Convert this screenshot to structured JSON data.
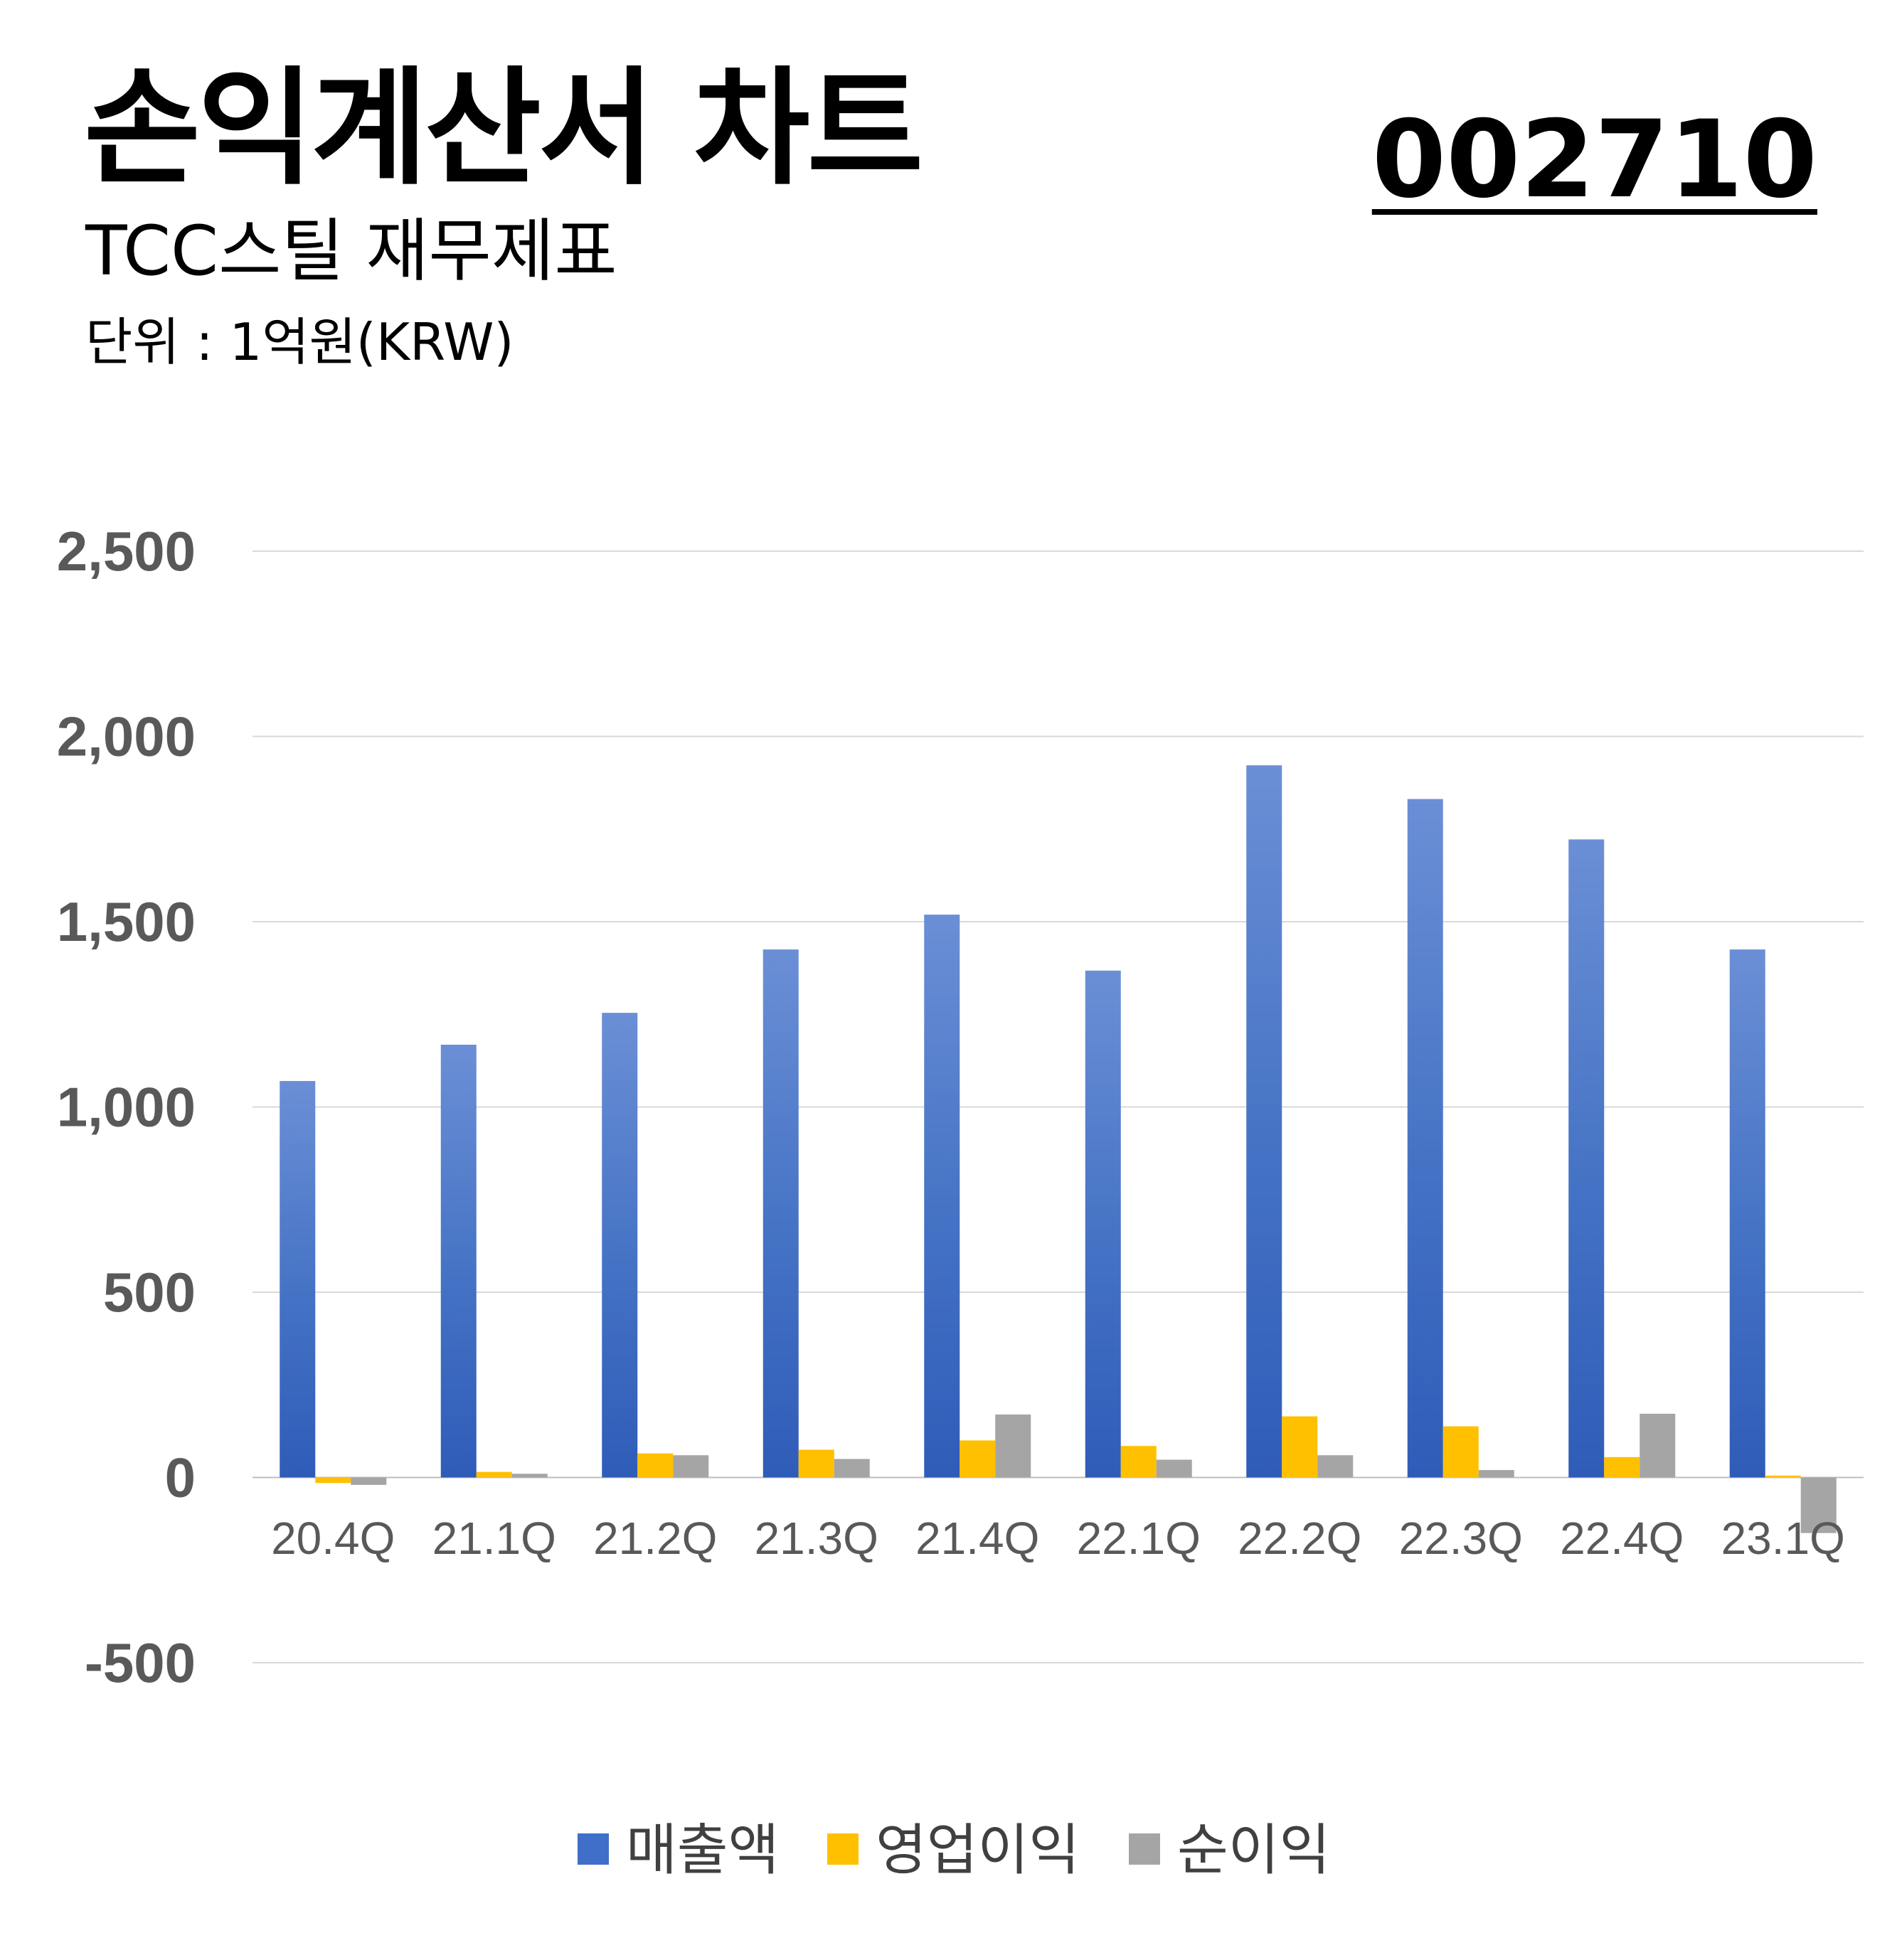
{
  "header": {
    "title": "손익계산서 차트",
    "subtitle": "TCC스틸 재무제표",
    "unit": "단위 : 1억원(KRW)",
    "code": "002710"
  },
  "chart_data": {
    "type": "bar",
    "categories": [
      "20.4Q",
      "21.1Q",
      "21.2Q",
      "21.3Q",
      "21.4Q",
      "22.1Q",
      "22.2Q",
      "22.3Q",
      "22.4Q",
      "23.1Q"
    ],
    "series": [
      {
        "name": "매출액",
        "color": "#4472C4",
        "values": [
          1070,
          1168,
          1254,
          1425,
          1519,
          1368,
          1922,
          1831,
          1722,
          1425
        ]
      },
      {
        "name": "영업이익",
        "color": "#FFC000",
        "values": [
          -15,
          15,
          65,
          75,
          100,
          85,
          165,
          138,
          55,
          5
        ]
      },
      {
        "name": "순이익",
        "color": "#A5A5A5",
        "values": [
          -20,
          10,
          60,
          50,
          170,
          48,
          60,
          20,
          172,
          -150
        ]
      }
    ],
    "yticks": [
      "2,500",
      "2,000",
      "1,500",
      "1,000",
      "500",
      "0",
      "-500"
    ],
    "ylim": [
      -500,
      2500
    ],
    "grid": true,
    "legend": "bottom"
  }
}
